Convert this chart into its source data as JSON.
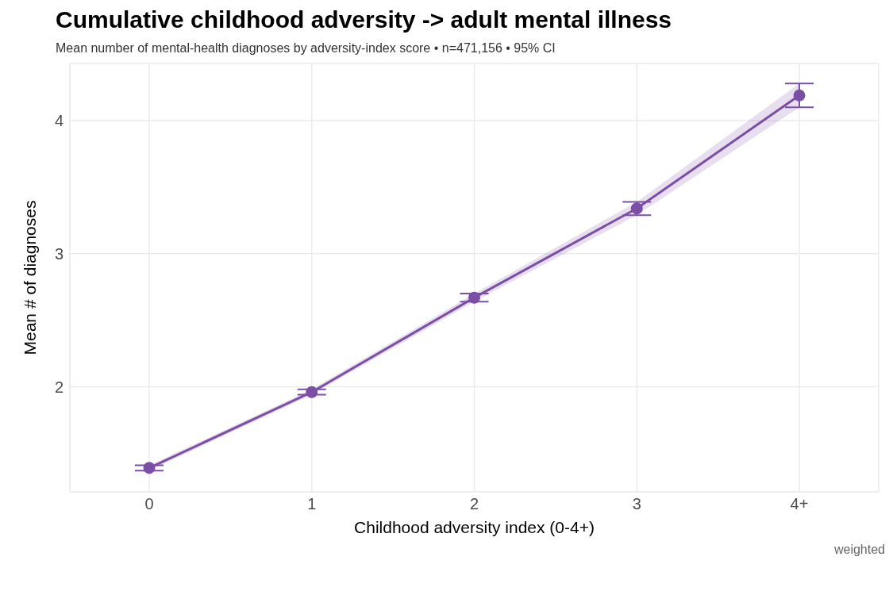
{
  "chart_data": {
    "type": "line",
    "title": "Cumulative childhood adversity -> adult mental illness",
    "subtitle": "Mean number of mental-health diagnoses by adversity-index score  •  n=471,156  •  95% CI",
    "xlabel": "Childhood adversity index (0-4+)",
    "ylabel": "Mean # of diagnoses",
    "categories": [
      "0",
      "1",
      "2",
      "3",
      "4+"
    ],
    "series": [
      {
        "color": "#7b4fa6",
        "values": [
          1.39,
          1.96,
          2.67,
          3.34,
          4.19
        ],
        "errors": [
          0.02,
          0.02,
          0.03,
          0.05,
          0.09
        ],
        "lower": [
          1.37,
          1.94,
          2.64,
          3.29,
          4.1
        ],
        "upper": [
          1.41,
          1.98,
          2.7,
          3.39,
          4.28
        ]
      }
    ],
    "ylim": [
      1.21,
      4.43
    ],
    "yticks": [
      2,
      3,
      4
    ],
    "grid": true,
    "legend": false,
    "marker": "circle",
    "line_style": "solid",
    "annotations": [
      "weighted"
    ]
  }
}
